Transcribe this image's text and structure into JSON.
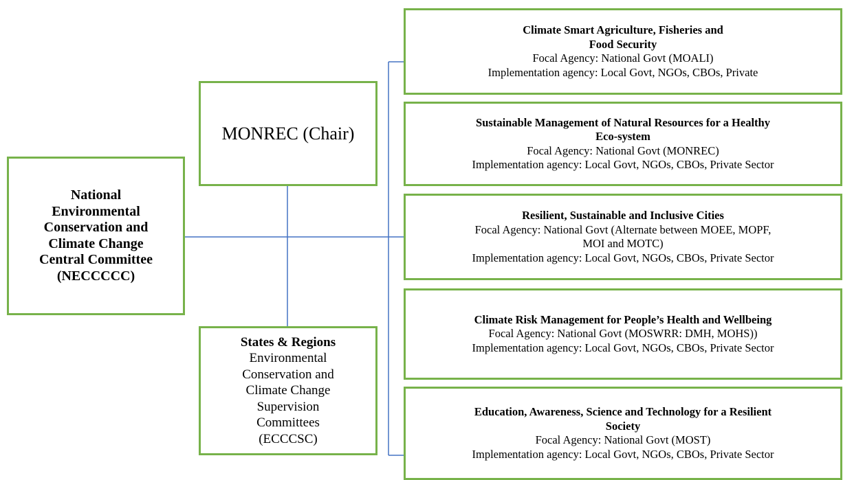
{
  "committee": {
    "lines": [
      "National",
      "Environmental",
      "Conservation and",
      "Climate Change",
      "Central Committee",
      "(NECCCCC)"
    ]
  },
  "chair": {
    "label": "MONREC (Chair)"
  },
  "states": {
    "title": "States & Regions",
    "lines": [
      "Environmental",
      "Conservation and",
      "Climate Change",
      "Supervision",
      "Committees",
      "(ECCCSC)"
    ]
  },
  "groups": [
    {
      "title": [
        "Climate Smart Agriculture, Fisheries and",
        "Food Security"
      ],
      "focal": [
        "Focal Agency: National Govt (MOALI)"
      ],
      "implementation": [
        "Implementation agency: Local Govt, NGOs, CBOs, Private"
      ]
    },
    {
      "title": [
        "Sustainable Management of Natural Resources for a Healthy",
        "Eco-system"
      ],
      "focal": [
        "Focal Agency: National Govt (MONREC)"
      ],
      "implementation": [
        "Implementation agency: Local Govt, NGOs, CBOs, Private Sector"
      ]
    },
    {
      "title": [
        "Resilient, Sustainable and Inclusive Cities"
      ],
      "focal": [
        "Focal Agency: National Govt (Alternate between MOEE, MOPF,",
        "MOI and MOTC)"
      ],
      "implementation": [
        "Implementation agency: Local Govt, NGOs, CBOs, Private Sector"
      ]
    },
    {
      "title": [
        "Climate Risk Management for People’s Health and Wellbeing"
      ],
      "focal": [
        "Focal Agency: National Govt (MOSWRR: DMH, MOHS))"
      ],
      "implementation": [
        "Implementation agency: Local Govt, NGOs, CBOs, Private Sector"
      ]
    },
    {
      "title": [
        "Education, Awareness, Science and Technology for a Resilient",
        "Society"
      ],
      "focal": [
        "Focal Agency: National Govt (MOST)"
      ],
      "implementation": [
        "Implementation agency: Local Govt, NGOs, CBOs, Private Sector"
      ]
    }
  ]
}
